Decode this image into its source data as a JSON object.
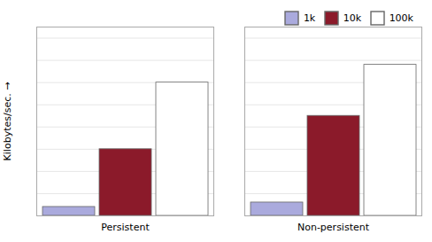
{
  "chart_data": {
    "type": "bar",
    "categories": [
      "Persistent",
      "Non-persistent"
    ],
    "series": [
      {
        "name": "1k",
        "color": "#aaaadd",
        "values": [
          4,
          6
        ]
      },
      {
        "name": "10k",
        "color": "#8b1a2a",
        "values": [
          30,
          45
        ]
      },
      {
        "name": "100k",
        "color": "#ffffff",
        "values": [
          60,
          68
        ]
      }
    ],
    "ylabel": "Kilobytes/sec.",
    "ylim": [
      0,
      85
    ],
    "yticks": [
      0,
      10,
      20,
      30,
      40,
      50,
      60,
      70,
      80
    ],
    "grid": true,
    "legend": "upper right",
    "tick_labels": "x"
  }
}
